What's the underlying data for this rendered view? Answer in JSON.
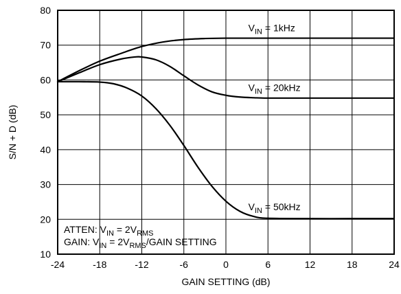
{
  "chart_data": {
    "type": "line",
    "xlabel": "GAIN SETTING (dB)",
    "ylabel": "S/N + D (dB)",
    "xlim": [
      -24,
      24
    ],
    "ylim": [
      10,
      80
    ],
    "xticks": [
      -24,
      -18,
      -12,
      -6,
      0,
      6,
      12,
      18,
      24
    ],
    "yticks": [
      10,
      20,
      30,
      40,
      50,
      60,
      70,
      80
    ],
    "grid": true,
    "series": [
      {
        "name": "V_IN = 1kHz",
        "label_main": "V",
        "label_sub": "IN",
        "label_rest": " = 1kHz",
        "label_pos": [
          3.2,
          74.0
        ],
        "x": [
          -24,
          -21,
          -18,
          -15,
          -12,
          -9,
          -6,
          -3,
          0,
          6,
          12,
          18,
          24
        ],
        "y": [
          59.5,
          62.6,
          65.4,
          67.6,
          69.6,
          70.9,
          71.6,
          71.9,
          72.0,
          72.0,
          72.0,
          72.0,
          72.0
        ]
      },
      {
        "name": "V_IN = 20kHz",
        "label_main": "V",
        "label_sub": "IN",
        "label_rest": " = 20kHz",
        "label_pos": [
          3.2,
          56.8
        ],
        "x": [
          -24,
          -21,
          -18,
          -15,
          -13,
          -12,
          -10,
          -8,
          -6,
          -4,
          -2,
          0,
          2,
          4,
          6,
          12,
          18,
          24
        ],
        "y": [
          59.5,
          62.0,
          64.4,
          66.0,
          66.6,
          66.6,
          65.8,
          63.9,
          61.2,
          58.6,
          56.6,
          55.6,
          55.1,
          54.9,
          54.8,
          54.8,
          54.8,
          54.8
        ]
      },
      {
        "name": "V_IN = 50kHz",
        "label_main": "V",
        "label_sub": "IN",
        "label_rest": " = 50kHz",
        "label_pos": [
          3.2,
          22.6
        ],
        "x": [
          -24,
          -21,
          -18,
          -16,
          -14,
          -12,
          -10,
          -8,
          -6,
          -4,
          -2,
          0,
          2,
          4,
          6,
          12,
          18,
          24
        ],
        "y": [
          59.5,
          59.5,
          59.4,
          58.9,
          57.6,
          55.4,
          51.8,
          47.0,
          41.2,
          35.0,
          29.5,
          25.2,
          22.3,
          20.8,
          20.3,
          20.2,
          20.2,
          20.2
        ]
      }
    ],
    "annotations": [
      {
        "parts": [
          {
            "t": "ATTEN: V"
          },
          {
            "t": "IN",
            "sub": true
          },
          {
            "t": " = 2V"
          },
          {
            "t": "RMS",
            "sub": true
          }
        ]
      },
      {
        "parts": [
          {
            "t": "GAIN: V"
          },
          {
            "t": "IN",
            "sub": true
          },
          {
            "t": " = 2V"
          },
          {
            "t": "RMS",
            "sub": true
          },
          {
            "t": "/GAIN SETTING"
          }
        ]
      }
    ]
  }
}
